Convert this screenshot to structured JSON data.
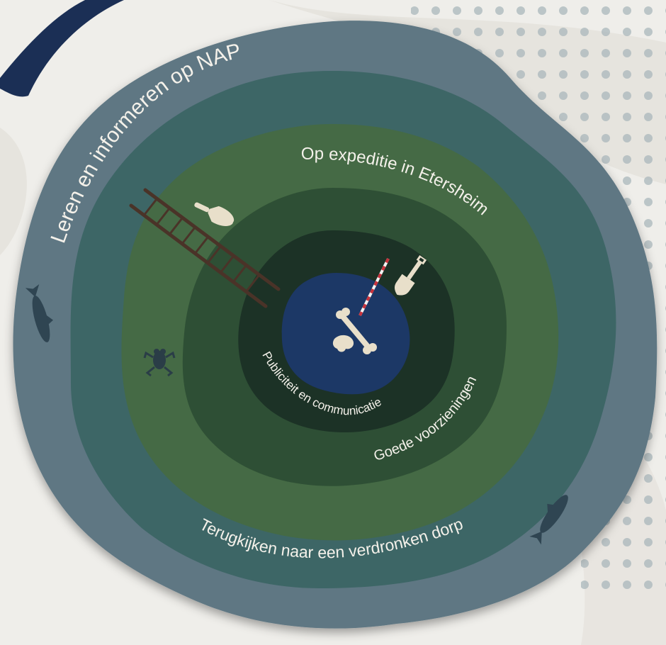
{
  "rings": [
    {
      "id": "outer",
      "label": "Leren en informeren op NAP",
      "color": "#5f7783"
    },
    {
      "id": "second",
      "label": "Terugkijken naar een verdronken dorp",
      "color": "#3d6666"
    },
    {
      "id": "third",
      "label": "Op expeditie in Etersheim",
      "color": "#446b44"
    },
    {
      "id": "fourth",
      "label": "Goede voorzieningen",
      "color": "#2f4f35"
    },
    {
      "id": "fifth",
      "label": "Publiciteit en communicatie",
      "color": "#1c3026"
    },
    {
      "id": "core",
      "label": "",
      "color": "#1f3766"
    }
  ],
  "colors": {
    "background": "#efeeea",
    "dots": "#a9b6ba",
    "brush_stroke": "#1b2f55",
    "illustration_cream": "#e8dfca",
    "ladder": "#4a3328",
    "silhouette": "#2a3d47"
  },
  "icons": [
    "ladder-icon",
    "trowel-icon",
    "shovel-icon",
    "bone-icon",
    "measuring-rod-icon",
    "frog-icon",
    "fish-icon"
  ]
}
